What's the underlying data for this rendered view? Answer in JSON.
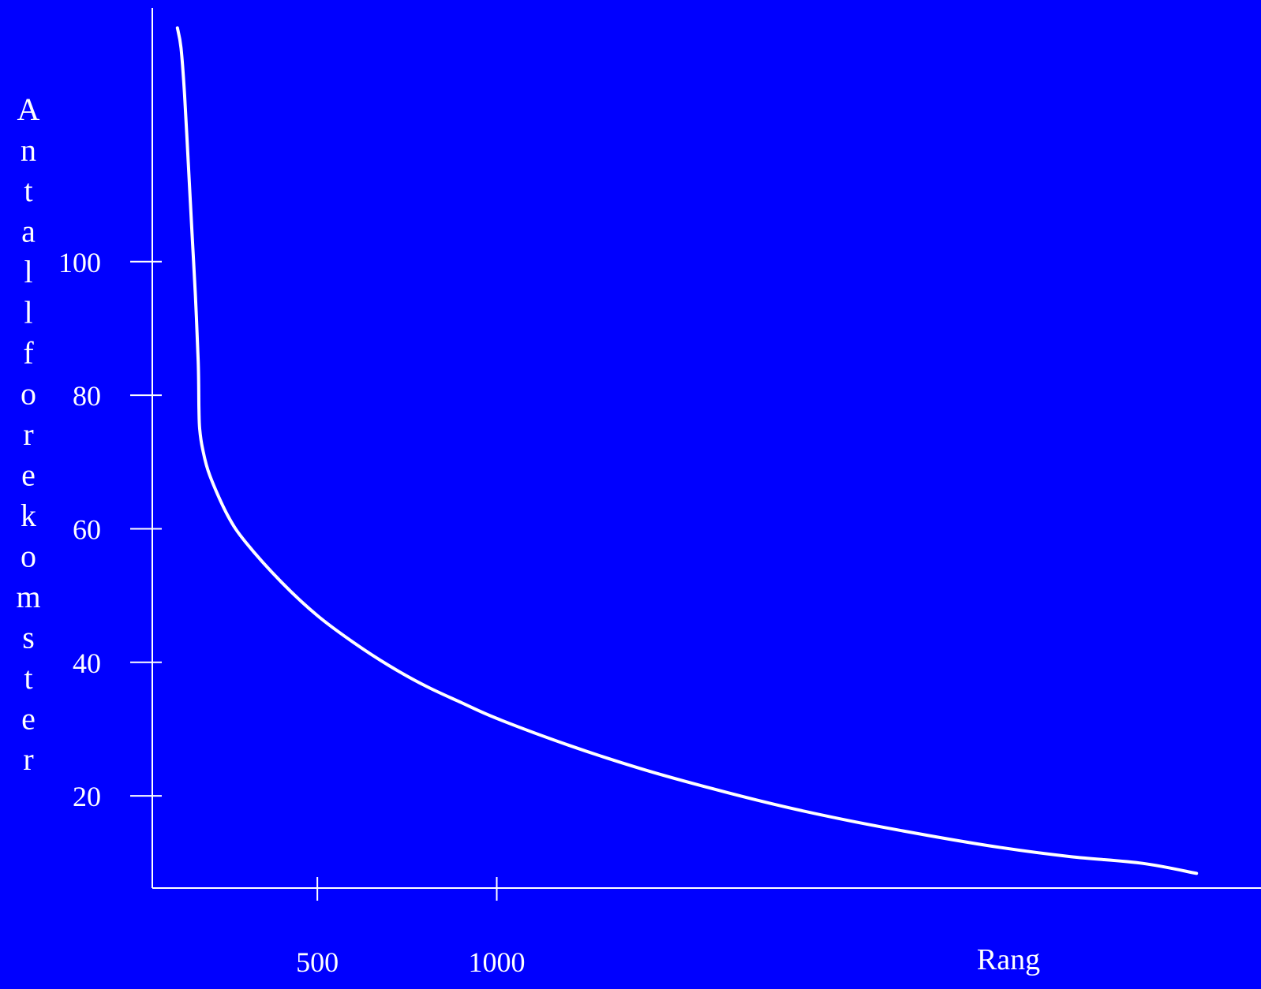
{
  "colors": {
    "background": "#0000FF",
    "foreground": "#FFFFFF"
  },
  "chart_data": {
    "type": "line",
    "title": "",
    "xlabel": "Rang",
    "ylabel": "Antall forekomster",
    "x_ticks": [
      500,
      1000
    ],
    "y_ticks": [
      20,
      40,
      60,
      80,
      100
    ],
    "xlim": [
      40,
      3130
    ],
    "ylim": [
      6.2,
      138
    ],
    "grid": false,
    "legend": "none",
    "series": [
      {
        "points": [
          [
            110,
            135
          ],
          [
            120,
            132
          ],
          [
            130,
            125
          ],
          [
            140,
            115
          ],
          [
            150,
            105
          ],
          [
            160,
            95
          ],
          [
            168,
            85
          ],
          [
            170,
            78
          ],
          [
            172,
            75
          ],
          [
            180,
            72
          ],
          [
            200,
            68
          ],
          [
            250,
            62
          ],
          [
            300,
            58
          ],
          [
            400,
            52
          ],
          [
            500,
            47
          ],
          [
            600,
            43
          ],
          [
            700,
            39.5
          ],
          [
            800,
            36.5
          ],
          [
            900,
            34
          ],
          [
            1000,
            31.6
          ],
          [
            1200,
            27.6
          ],
          [
            1400,
            24.1
          ],
          [
            1600,
            21.1
          ],
          [
            1800,
            18.4
          ],
          [
            2000,
            16.1
          ],
          [
            2200,
            14.1
          ],
          [
            2400,
            12.3
          ],
          [
            2600,
            10.9
          ],
          [
            2800,
            9.9
          ],
          [
            2950,
            8.4
          ]
        ]
      }
    ]
  }
}
